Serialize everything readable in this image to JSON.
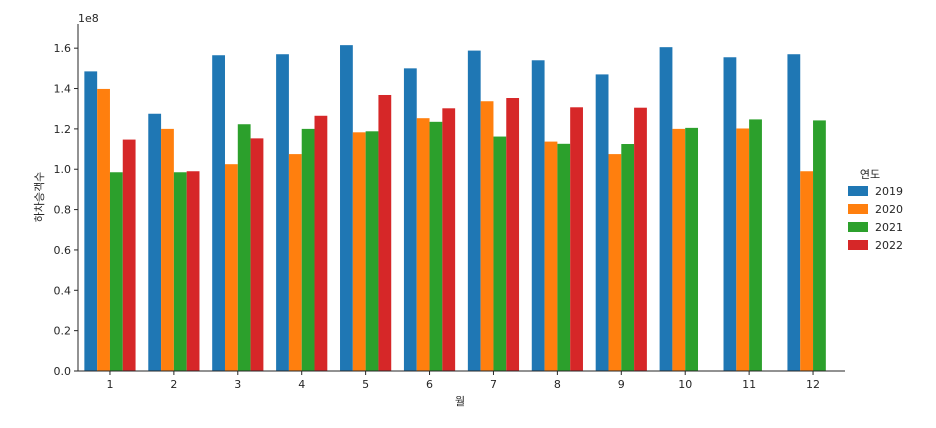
{
  "chart_data": {
    "type": "bar",
    "categories": [
      "1",
      "2",
      "3",
      "4",
      "5",
      "6",
      "7",
      "8",
      "9",
      "10",
      "11",
      "12"
    ],
    "series": [
      {
        "name": "2019",
        "color": "#1f77b4",
        "values": [
          148500000,
          127500000,
          156500000,
          157000000,
          161500000,
          150000000,
          158800000,
          154000000,
          147000000,
          160500000,
          155500000,
          157000000
        ]
      },
      {
        "name": "2020",
        "color": "#ff7f0e",
        "values": [
          139800000,
          120000000,
          102500000,
          107500000,
          118300000,
          125300000,
          133700000,
          113700000,
          107500000,
          120000000,
          120200000,
          99000000
        ]
      },
      {
        "name": "2021",
        "color": "#2ca02c",
        "values": [
          98500000,
          98500000,
          122300000,
          120000000,
          118800000,
          123500000,
          116200000,
          112600000,
          112500000,
          120500000,
          124700000,
          124200000
        ]
      },
      {
        "name": "2022",
        "color": "#d62728",
        "values": [
          114700000,
          99000000,
          115300000,
          126500000,
          136800000,
          130200000,
          135300000,
          130700000,
          130500000,
          null,
          null,
          null
        ]
      }
    ],
    "xlabel": "월",
    "ylabel": "하차승객수",
    "ylim": [
      0,
      170000000
    ],
    "yticks": [
      0,
      20000000,
      40000000,
      60000000,
      80000000,
      100000000,
      120000000,
      140000000,
      160000000
    ],
    "ytick_labels": [
      "0.0",
      "0.2",
      "0.4",
      "0.6",
      "0.8",
      "1.0",
      "1.2",
      "1.4",
      "1.6"
    ],
    "offset_label": "1e8",
    "legend_title": "연도",
    "legend_position": "right",
    "grid": false
  }
}
